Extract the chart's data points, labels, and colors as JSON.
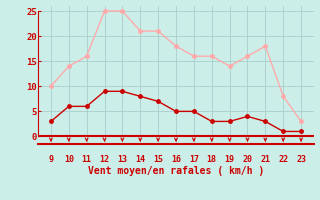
{
  "hours": [
    9,
    10,
    11,
    12,
    13,
    14,
    15,
    16,
    17,
    18,
    19,
    20,
    21,
    22,
    23
  ],
  "wind_avg": [
    3,
    6,
    6,
    9,
    9,
    8,
    7,
    5,
    5,
    3,
    3,
    4,
    3,
    1,
    1
  ],
  "wind_gust": [
    10,
    14,
    16,
    25,
    25,
    21,
    21,
    18,
    16,
    16,
    14,
    16,
    18,
    8,
    3
  ],
  "avg_color": "#cc0000",
  "gust_color": "#ffaaaa",
  "background_color": "#cceee8",
  "grid_color": "#aacccc",
  "xlabel": "Vent moyen/en rafales ( km/h )",
  "ylim": [
    -1.5,
    26
  ],
  "yticks": [
    0,
    5,
    10,
    15,
    20,
    25
  ],
  "tick_color": "#cc0000",
  "spine_color": "#cc0000"
}
